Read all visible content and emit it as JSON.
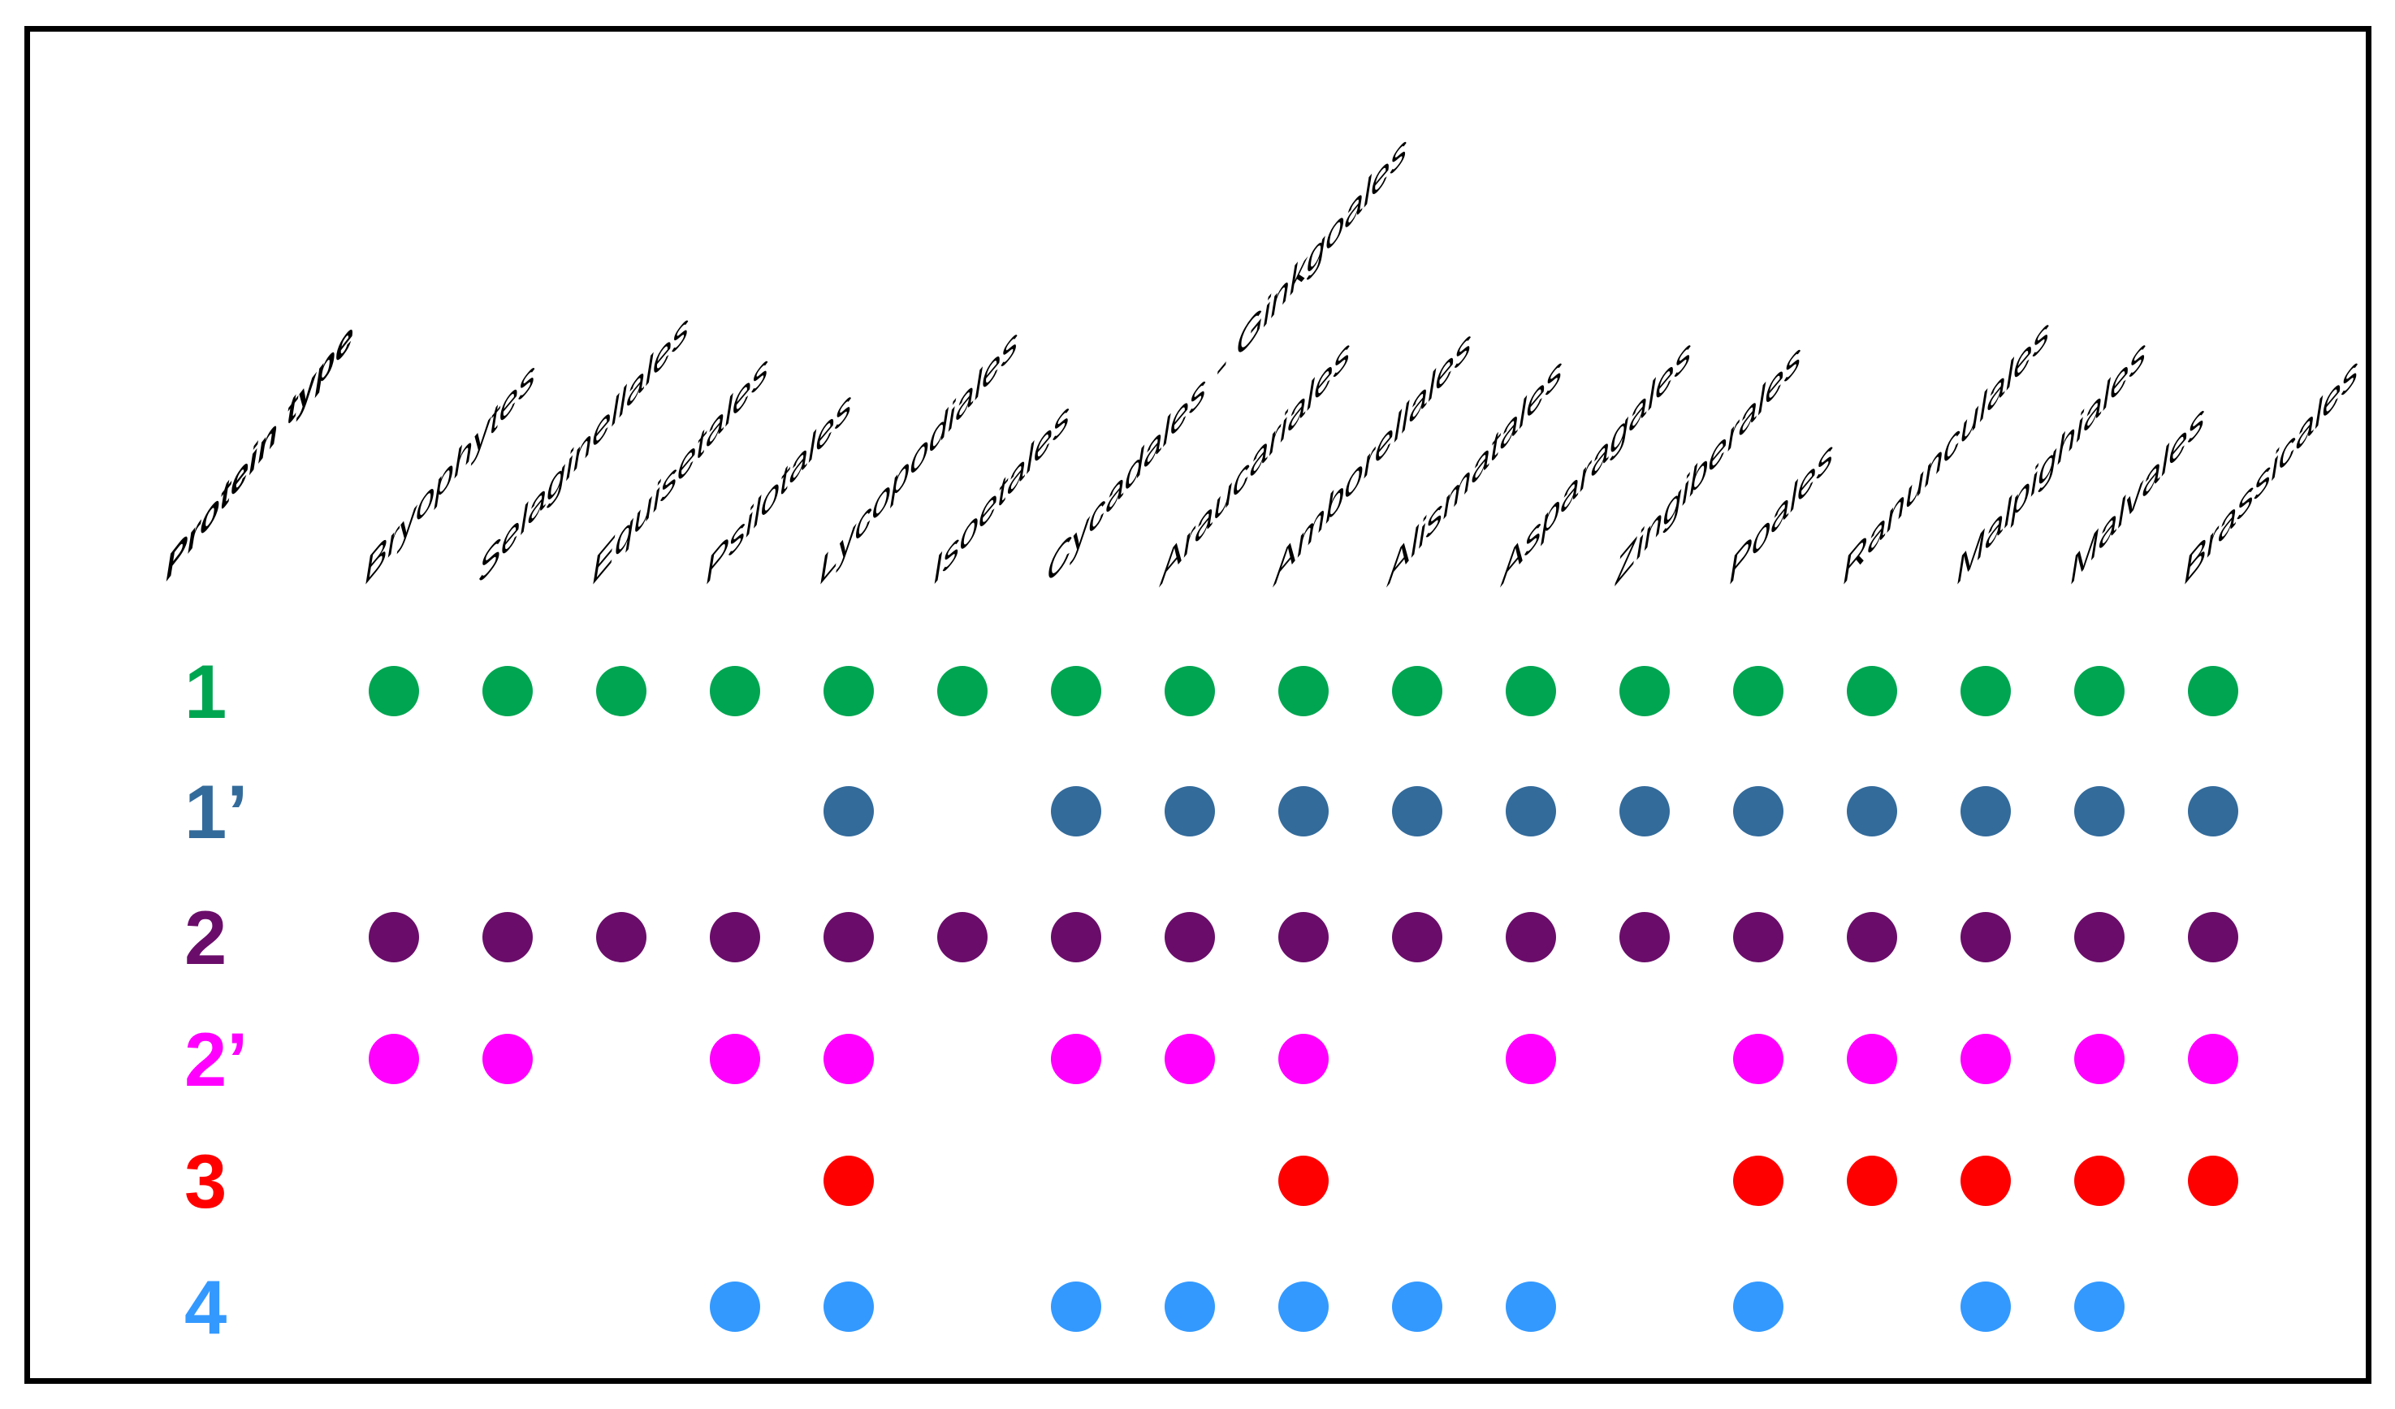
{
  "chart_data": {
    "type": "table",
    "title": "Protein type",
    "description_of_mark": "filled circle indicates protein type present in taxon",
    "columns": [
      "Bryophytes",
      "Selaginellales",
      "Equisetales",
      "Psilotales",
      "Lycopodiales",
      "Isoetales",
      "Cycadales - Ginkgoales",
      "Araucariales",
      "Amborellales",
      "Alismatales",
      "Asparagales",
      "Zingiberales",
      "Poales",
      "Ranunculales",
      "Malpighiales",
      "Malvales",
      "Brassicales"
    ],
    "rows": [
      {
        "label": "1",
        "color": "#00A551",
        "present": [
          1,
          1,
          1,
          1,
          1,
          1,
          1,
          1,
          1,
          1,
          1,
          1,
          1,
          1,
          1,
          1,
          1
        ]
      },
      {
        "label": "1’",
        "color": "#336B9B",
        "present": [
          0,
          0,
          0,
          0,
          1,
          0,
          1,
          1,
          1,
          1,
          1,
          1,
          1,
          1,
          1,
          1,
          1
        ]
      },
      {
        "label": "2",
        "color": "#6A0D6A",
        "present": [
          1,
          1,
          1,
          1,
          1,
          1,
          1,
          1,
          1,
          1,
          1,
          1,
          1,
          1,
          1,
          1,
          1
        ]
      },
      {
        "label": "2’",
        "color": "#FF00FF",
        "present": [
          1,
          1,
          0,
          1,
          1,
          0,
          1,
          1,
          1,
          0,
          1,
          0,
          1,
          1,
          1,
          1,
          1
        ]
      },
      {
        "label": "3",
        "color": "#FF0000",
        "present": [
          0,
          0,
          0,
          0,
          1,
          0,
          0,
          0,
          1,
          0,
          0,
          0,
          1,
          1,
          1,
          1,
          1
        ]
      },
      {
        "label": "4",
        "color": "#3399FF",
        "present": [
          0,
          0,
          0,
          1,
          1,
          0,
          1,
          1,
          1,
          1,
          1,
          0,
          1,
          0,
          1,
          1,
          0
        ]
      }
    ],
    "legend_position": "none",
    "grid": false,
    "frame_color": "#000000",
    "background_color": "#FFFFFF"
  }
}
